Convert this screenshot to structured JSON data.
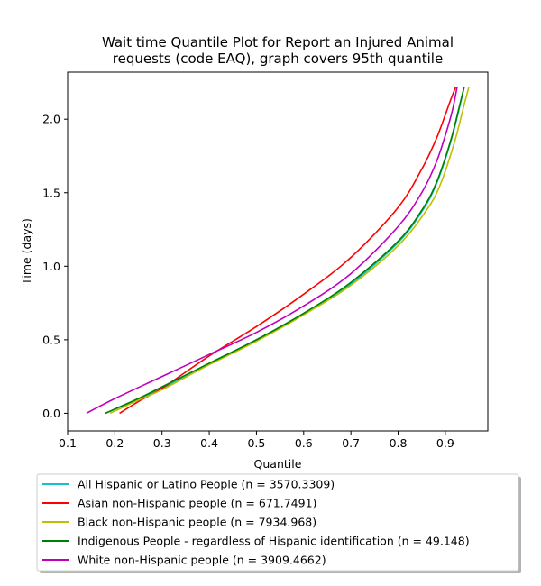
{
  "chart_data": {
    "type": "line",
    "title_line1": "Wait time Quantile Plot for Report an Injured Animal",
    "title_line2": "requests (code EAQ), graph covers 95th quantile",
    "xlabel": "Quantile",
    "ylabel": "Time (days)",
    "xlim": [
      0.1,
      0.99
    ],
    "ylim": [
      -0.12,
      2.32
    ],
    "xticks": [
      0.1,
      0.2,
      0.3,
      0.4,
      0.5,
      0.6,
      0.7,
      0.8,
      0.9
    ],
    "xtick_labels": [
      "0.1",
      "0.2",
      "0.3",
      "0.4",
      "0.5",
      "0.6",
      "0.7",
      "0.8",
      "0.9"
    ],
    "yticks": [
      0.0,
      0.5,
      1.0,
      1.5,
      2.0
    ],
    "ytick_labels": [
      "0.0",
      "0.5",
      "1.0",
      "1.5",
      "2.0"
    ],
    "legend_position": "below plot",
    "series": [
      {
        "name": "All Hispanic or Latino People (n = 3570.3309)",
        "color": "#17becf",
        "x": [
          0.18,
          0.25,
          0.3,
          0.4,
          0.5,
          0.6,
          0.7,
          0.8,
          0.85,
          0.88,
          0.91,
          0.93,
          0.94
        ],
        "y": [
          0.0,
          0.1,
          0.17,
          0.34,
          0.5,
          0.68,
          0.88,
          1.16,
          1.37,
          1.55,
          1.83,
          2.08,
          2.22
        ]
      },
      {
        "name": "Asian non-Hispanic people (n = 671.7491)",
        "color": "#ff0000",
        "x": [
          0.21,
          0.25,
          0.3,
          0.4,
          0.5,
          0.6,
          0.7,
          0.8,
          0.85,
          0.88,
          0.9,
          0.91,
          0.922
        ],
        "y": [
          0.0,
          0.08,
          0.17,
          0.39,
          0.59,
          0.81,
          1.06,
          1.4,
          1.66,
          1.86,
          2.03,
          2.12,
          2.22
        ]
      },
      {
        "name": "Black non-Hispanic people (n = 7934.968)",
        "color": "#bfbf00",
        "x": [
          0.19,
          0.25,
          0.3,
          0.4,
          0.5,
          0.6,
          0.7,
          0.8,
          0.86,
          0.89,
          0.92,
          0.94,
          0.95
        ],
        "y": [
          0.0,
          0.09,
          0.16,
          0.33,
          0.49,
          0.67,
          0.87,
          1.14,
          1.38,
          1.56,
          1.85,
          2.1,
          2.22
        ]
      },
      {
        "name": "Indigenous People - regardless of Hispanic identification (n = 49.148)",
        "color": "#008000",
        "x": [
          0.18,
          0.25,
          0.3,
          0.4,
          0.5,
          0.6,
          0.7,
          0.8,
          0.85,
          0.88,
          0.91,
          0.93,
          0.94
        ],
        "y": [
          0.0,
          0.1,
          0.18,
          0.34,
          0.5,
          0.68,
          0.89,
          1.17,
          1.38,
          1.56,
          1.84,
          2.09,
          2.22
        ]
      },
      {
        "name": "White non-Hispanic people (n = 3909.4662)",
        "color": "#bf00bf",
        "x": [
          0.14,
          0.2,
          0.3,
          0.4,
          0.5,
          0.6,
          0.7,
          0.8,
          0.85,
          0.88,
          0.9,
          0.915,
          0.925
        ],
        "y": [
          0.0,
          0.1,
          0.25,
          0.4,
          0.55,
          0.73,
          0.95,
          1.27,
          1.5,
          1.7,
          1.89,
          2.06,
          2.22
        ]
      }
    ]
  }
}
